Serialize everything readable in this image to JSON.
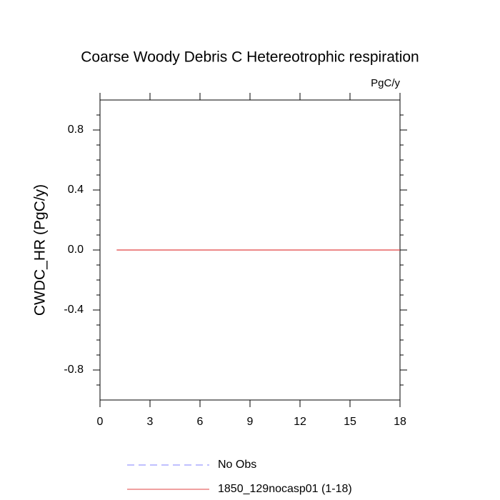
{
  "chart_data": {
    "type": "line",
    "title": "Coarse Woody Debris C Hetereotrophic respiration",
    "units": "PgC/y",
    "y_label": "CWDC_HR  (PgC/y)",
    "xlim": [
      0,
      18
    ],
    "xticks": [
      0,
      3,
      6,
      9,
      12,
      15,
      18
    ],
    "ylim": [
      -1,
      1
    ],
    "yticks": [
      -0.8,
      -0.4,
      {
        "value": 0,
        "label": "0.0"
      },
      0.4,
      0.8
    ],
    "yminorticks": [
      -0.9,
      -0.7,
      -0.6,
      -0.5,
      -0.3,
      -0.2,
      -0.1,
      0.1,
      0.2,
      0.3,
      0.5,
      0.6,
      0.7,
      0.9
    ],
    "series": [
      {
        "name": "No Obs",
        "color": "#8080ff",
        "dashed": true
      },
      {
        "name": "1850_129nocasp01 (1-18)",
        "color": "#e04040",
        "dashed": false,
        "x": [
          1,
          2,
          3,
          4,
          5,
          6,
          7,
          8,
          9,
          10,
          11,
          12,
          13,
          14,
          15,
          16,
          17,
          18
        ],
        "values": [
          0,
          0,
          0,
          0,
          0,
          0,
          0,
          0,
          0,
          0,
          0,
          0,
          0,
          0,
          0,
          0,
          0,
          0
        ]
      }
    ]
  }
}
